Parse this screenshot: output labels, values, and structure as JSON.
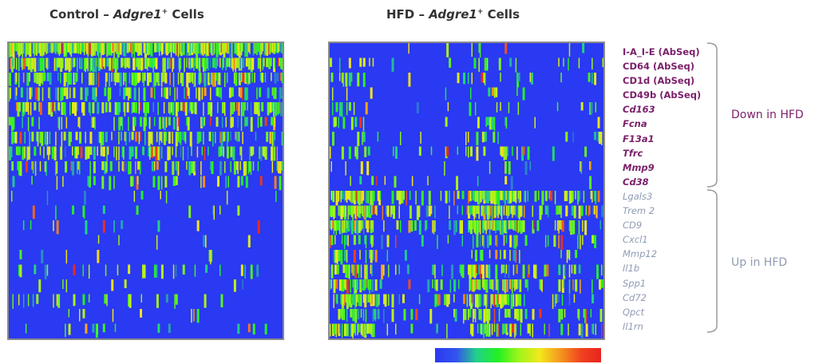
{
  "panels": [
    {
      "prefix": "Control – ",
      "gene": "Adgre1",
      "sup": "+",
      "suffix": " Cells"
    },
    {
      "prefix": "HFD – ",
      "gene": "Adgre1",
      "sup": "+",
      "suffix": " Cells"
    }
  ],
  "genes_down": [
    {
      "label": "I-A_I-E (AbSeq)",
      "italic": false
    },
    {
      "label": "CD64 (AbSeq)",
      "italic": false
    },
    {
      "label": "CD1d (AbSeq)",
      "italic": false
    },
    {
      "label": "CD49b (AbSeq)",
      "italic": false
    },
    {
      "label": "Cd163",
      "italic": true
    },
    {
      "label": "Fcna",
      "italic": true
    },
    {
      "label": "F13a1",
      "italic": true
    },
    {
      "label": "Tfrc",
      "italic": true
    },
    {
      "label": "Mmp9",
      "italic": true
    },
    {
      "label": "Cd38",
      "italic": true
    }
  ],
  "genes_up": [
    "Lgals3",
    "Trem 2",
    "CD9",
    "Cxcl1",
    "Mmp12",
    "Il1b",
    "Spp1",
    "Cd72",
    "Qpct",
    "Il1rn"
  ],
  "groups": {
    "down": "Down in HFD",
    "up": "Up in HFD"
  },
  "colors": {
    "down_label": "#7b1f6a",
    "up_label": "#8f9bb3",
    "bracket": "#999999",
    "heatmap_background": "#2a39f2",
    "colormap": [
      "#2a39f2",
      "#3355ee",
      "#22d18a",
      "#22f122",
      "#9bf51a",
      "#f3e81c",
      "#f59a1e",
      "#f0421f",
      "#e8241f"
    ]
  },
  "chart_data": [
    {
      "type": "heatmap",
      "title": "Control – Adgre1+ Cells",
      "rows": [
        "I-A_I-E (AbSeq)",
        "CD64 (AbSeq)",
        "CD1d (AbSeq)",
        "CD49b (AbSeq)",
        "Cd163",
        "Fcna",
        "F13a1",
        "Tfrc",
        "Mmp9",
        "Cd38",
        "Lgals3",
        "Trem 2",
        "CD9",
        "Cxcl1",
        "Mmp12",
        "Il1b",
        "Spp1",
        "Cd72",
        "Qpct",
        "Il1rn"
      ],
      "columns": "individual cells (unlabeled)",
      "row_mean_expression": [
        0.85,
        0.7,
        0.55,
        0.35,
        0.45,
        0.3,
        0.4,
        0.35,
        0.3,
        0.15,
        0.04,
        0.04,
        0.05,
        0.03,
        0.04,
        0.1,
        0.03,
        0.08,
        0.05,
        0.04
      ],
      "color_scale": [
        0,
        1
      ]
    },
    {
      "type": "heatmap",
      "title": "HFD – Adgre1+ Cells",
      "rows": [
        "I-A_I-E (AbSeq)",
        "CD64 (AbSeq)",
        "CD1d (AbSeq)",
        "CD49b (AbSeq)",
        "Cd163",
        "Fcna",
        "F13a1",
        "Tfrc",
        "Mmp9",
        "Cd38",
        "Lgals3",
        "Trem 2",
        "CD9",
        "Cxcl1",
        "Mmp12",
        "Il1b",
        "Spp1",
        "Cd72",
        "Qpct",
        "Il1rn"
      ],
      "columns": "individual cells (unlabeled)",
      "row_mean_expression": [
        0.03,
        0.05,
        0.08,
        0.06,
        0.07,
        0.08,
        0.06,
        0.12,
        0.05,
        0.04,
        0.45,
        0.6,
        0.4,
        0.2,
        0.15,
        0.25,
        0.3,
        0.35,
        0.25,
        0.3
      ],
      "color_scale": [
        0,
        1
      ]
    }
  ]
}
